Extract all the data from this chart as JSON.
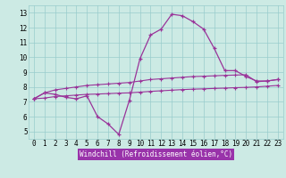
{
  "bg_color": "#cceae4",
  "line_color": "#993399",
  "grid_color": "#99cccc",
  "xlabel": "Windchill (Refroidissement éolien,°C)",
  "xlabel_bg": "#9933aa",
  "x": [
    0,
    1,
    2,
    3,
    4,
    5,
    6,
    7,
    8,
    9,
    10,
    11,
    12,
    13,
    14,
    15,
    16,
    17,
    18,
    19,
    20,
    21,
    22,
    23
  ],
  "line1": [
    7.2,
    7.6,
    7.5,
    7.3,
    7.2,
    7.4,
    6.0,
    5.5,
    4.8,
    7.1,
    9.9,
    11.5,
    11.9,
    12.9,
    12.8,
    12.4,
    11.9,
    10.6,
    9.1,
    9.1,
    8.7,
    8.4,
    8.4,
    8.5
  ],
  "line2": [
    7.2,
    7.6,
    7.8,
    7.9,
    8.0,
    8.1,
    8.15,
    8.2,
    8.25,
    8.3,
    8.4,
    8.5,
    8.55,
    8.6,
    8.65,
    8.7,
    8.72,
    8.75,
    8.78,
    8.8,
    8.82,
    8.35,
    8.4,
    8.5
  ],
  "line3": [
    7.2,
    7.25,
    7.35,
    7.4,
    7.45,
    7.5,
    7.52,
    7.55,
    7.58,
    7.6,
    7.65,
    7.7,
    7.74,
    7.78,
    7.82,
    7.85,
    7.87,
    7.9,
    7.92,
    7.95,
    7.97,
    8.0,
    8.05,
    8.1
  ],
  "ylim": [
    4.5,
    13.5
  ],
  "yticks": [
    5,
    6,
    7,
    8,
    9,
    10,
    11,
    12,
    13
  ],
  "xticks": [
    0,
    1,
    2,
    3,
    4,
    5,
    6,
    7,
    8,
    9,
    10,
    11,
    12,
    13,
    14,
    15,
    16,
    17,
    18,
    19,
    20,
    21,
    22,
    23
  ],
  "tick_fontsize": 5.5,
  "label_fontsize": 5.5
}
